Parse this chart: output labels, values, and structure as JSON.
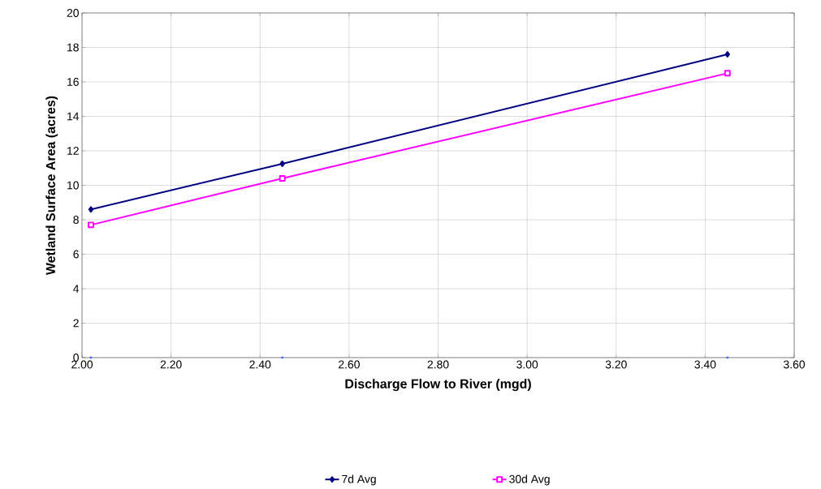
{
  "chart_data": {
    "type": "line",
    "xlabel": "Discharge Flow to River (mgd)",
    "ylabel": "Wetland Surface Area (acres)",
    "x": [
      2.02,
      2.45,
      3.45
    ],
    "series": [
      {
        "name": "7d Avg",
        "color": "#000080",
        "marker": "diamond",
        "values": [
          8.6,
          11.25,
          17.6
        ]
      },
      {
        "name": "30d Avg",
        "color": "#ff00ff",
        "marker": "square",
        "values": [
          7.7,
          10.4,
          16.5
        ]
      },
      {
        "type": "scatter",
        "color": "#3366ff",
        "marker": "circle",
        "values": [
          0,
          0,
          0
        ]
      }
    ],
    "xlim": [
      2.0,
      3.6
    ],
    "xticks": [
      {
        "value": 2.0,
        "label": "2.00"
      },
      {
        "value": 2.2,
        "label": "2.20"
      },
      {
        "value": 2.4,
        "label": "2.40"
      },
      {
        "value": 2.6,
        "label": "2.60"
      },
      {
        "value": 2.8,
        "label": "2.80"
      },
      {
        "value": 3.0,
        "label": "3.00"
      },
      {
        "value": 3.2,
        "label": "3.20"
      },
      {
        "value": 3.4,
        "label": "3.40"
      },
      {
        "value": 3.6,
        "label": "3.60"
      }
    ],
    "ylim": [
      0,
      20
    ],
    "yticks": [
      0,
      2,
      4,
      6,
      8,
      10,
      12,
      14,
      16,
      18,
      20
    ],
    "grid": true,
    "legend": "bottom"
  }
}
